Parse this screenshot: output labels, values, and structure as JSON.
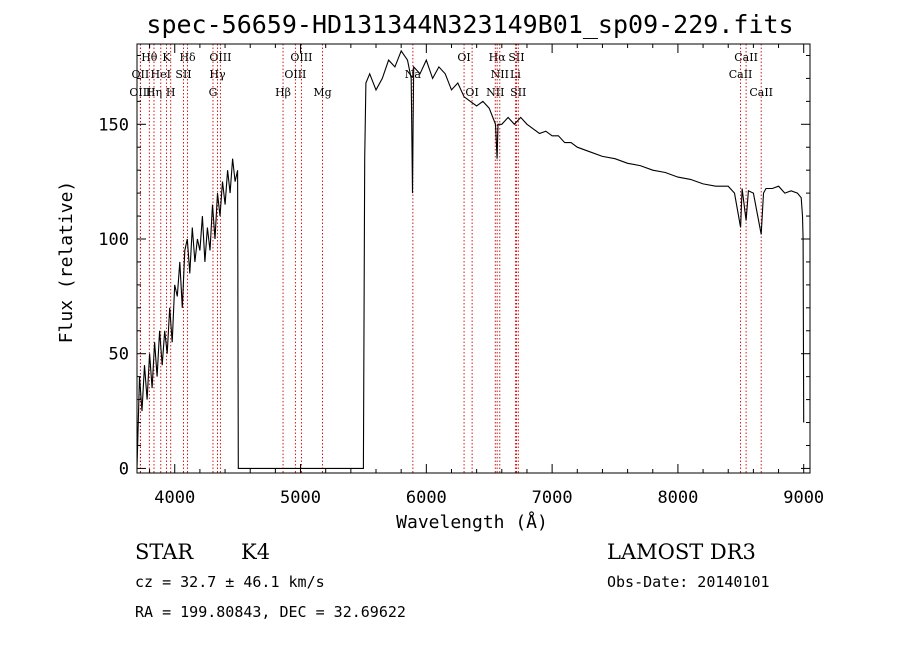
{
  "chart_data": {
    "type": "line",
    "title": "spec-56659-HD131344N323149B01_sp09-229.fits",
    "xlabel": "Wavelength (Å)",
    "ylabel": "Flux (relative)",
    "xlim": [
      3700,
      9050
    ],
    "ylim": [
      -2,
      185
    ],
    "xticks": [
      4000,
      5000,
      6000,
      7000,
      8000,
      9000
    ],
    "yticks": [
      0,
      50,
      100,
      150
    ],
    "grid": false,
    "series": [
      {
        "name": "flux",
        "x": [
          3700,
          3720,
          3740,
          3760,
          3780,
          3800,
          3820,
          3840,
          3860,
          3880,
          3900,
          3920,
          3940,
          3960,
          3980,
          4000,
          4020,
          4040,
          4060,
          4080,
          4100,
          4120,
          4140,
          4160,
          4180,
          4200,
          4220,
          4240,
          4260,
          4280,
          4300,
          4320,
          4340,
          4360,
          4380,
          4400,
          4420,
          4440,
          4460,
          4480,
          4500,
          4505,
          4520,
          5500,
          5510,
          5520,
          5550,
          5600,
          5650,
          5700,
          5750,
          5800,
          5850,
          5880,
          5890,
          5895,
          5900,
          5950,
          6000,
          6050,
          6100,
          6150,
          6200,
          6250,
          6300,
          6350,
          6400,
          6450,
          6500,
          6550,
          6563,
          6570,
          6600,
          6650,
          6700,
          6750,
          6800,
          6850,
          6900,
          6950,
          7000,
          7050,
          7100,
          7150,
          7200,
          7300,
          7400,
          7500,
          7600,
          7700,
          7800,
          7900,
          8000,
          8100,
          8200,
          8300,
          8400,
          8450,
          8498,
          8510,
          8542,
          8560,
          8600,
          8662,
          8680,
          8700,
          8750,
          8800,
          8850,
          8900,
          8950,
          8980,
          8990,
          8995,
          9000
        ],
        "y": [
          0,
          40,
          25,
          45,
          30,
          50,
          35,
          55,
          40,
          60,
          45,
          60,
          50,
          70,
          55,
          80,
          75,
          90,
          70,
          95,
          100,
          85,
          105,
          90,
          100,
          95,
          110,
          90,
          105,
          95,
          115,
          100,
          120,
          110,
          125,
          115,
          130,
          120,
          135,
          125,
          130,
          0,
          0,
          0,
          135,
          168,
          172,
          165,
          170,
          178,
          175,
          182,
          178,
          170,
          120,
          150,
          175,
          172,
          178,
          170,
          175,
          172,
          165,
          168,
          162,
          160,
          158,
          160,
          157,
          150,
          135,
          150,
          150,
          153,
          150,
          153,
          150,
          148,
          146,
          147,
          145,
          145,
          142,
          142,
          140,
          138,
          136,
          135,
          133,
          132,
          130,
          129,
          127,
          126,
          124,
          123,
          123,
          120,
          105,
          122,
          108,
          121,
          120,
          102,
          120,
          122,
          122,
          123,
          120,
          121,
          120,
          118,
          110,
          100,
          20
        ]
      }
    ],
    "lines": [
      {
        "label": "Hθ",
        "wave": 3798,
        "row": 1
      },
      {
        "label": "K",
        "wave": 3934,
        "row": 1
      },
      {
        "label": "Hδ",
        "wave": 4102,
        "row": 1
      },
      {
        "label": "OIII",
        "wave": 4363,
        "row": 1
      },
      {
        "label": "OIII",
        "wave": 5007,
        "row": 1
      },
      {
        "label": "OI",
        "wave": 6300,
        "row": 1
      },
      {
        "label": "Hα",
        "wave": 6563,
        "row": 1
      },
      {
        "label": "SII",
        "wave": 6717,
        "row": 1
      },
      {
        "label": "CaII",
        "wave": 8542,
        "row": 1
      },
      {
        "label": "OII",
        "wave": 3727,
        "row": 2
      },
      {
        "label": "HeI",
        "wave": 3889,
        "row": 2
      },
      {
        "label": "SII",
        "wave": 4070,
        "row": 2
      },
      {
        "label": "Hγ",
        "wave": 4340,
        "row": 2
      },
      {
        "label": "OIII",
        "wave": 4959,
        "row": 2
      },
      {
        "label": "Na",
        "wave": 5893,
        "row": 2
      },
      {
        "label": "NII",
        "wave": 6584,
        "row": 2
      },
      {
        "label": "Li",
        "wave": 6708,
        "row": 2
      },
      {
        "label": "CaII",
        "wave": 8498,
        "row": 2
      },
      {
        "label": "OIII",
        "wave": 3727,
        "row": 3
      },
      {
        "label": "Hη",
        "wave": 3835,
        "row": 3
      },
      {
        "label": "H",
        "wave": 3968,
        "row": 3
      },
      {
        "label": "G",
        "wave": 4304,
        "row": 3
      },
      {
        "label": "Hβ",
        "wave": 4861,
        "row": 3
      },
      {
        "label": "Mg",
        "wave": 5175,
        "row": 3
      },
      {
        "label": "OI",
        "wave": 6364,
        "row": 3
      },
      {
        "label": "NII",
        "wave": 6548,
        "row": 3
      },
      {
        "label": "SII",
        "wave": 6731,
        "row": 3
      },
      {
        "label": "CaII",
        "wave": 8662,
        "row": 3
      }
    ]
  },
  "info": {
    "object_class": "STAR",
    "subclass": "K4",
    "survey": "LAMOST DR3",
    "redshift": "cz = 32.7 ± 46.1 km/s",
    "obs_date": "Obs-Date: 20140101",
    "coords": "RA = 199.80843, DEC =  32.69622"
  },
  "colors": {
    "spectrum": "#000000",
    "line_marker": "#cc0000",
    "axis": "#000000",
    "background": "#ffffff"
  }
}
